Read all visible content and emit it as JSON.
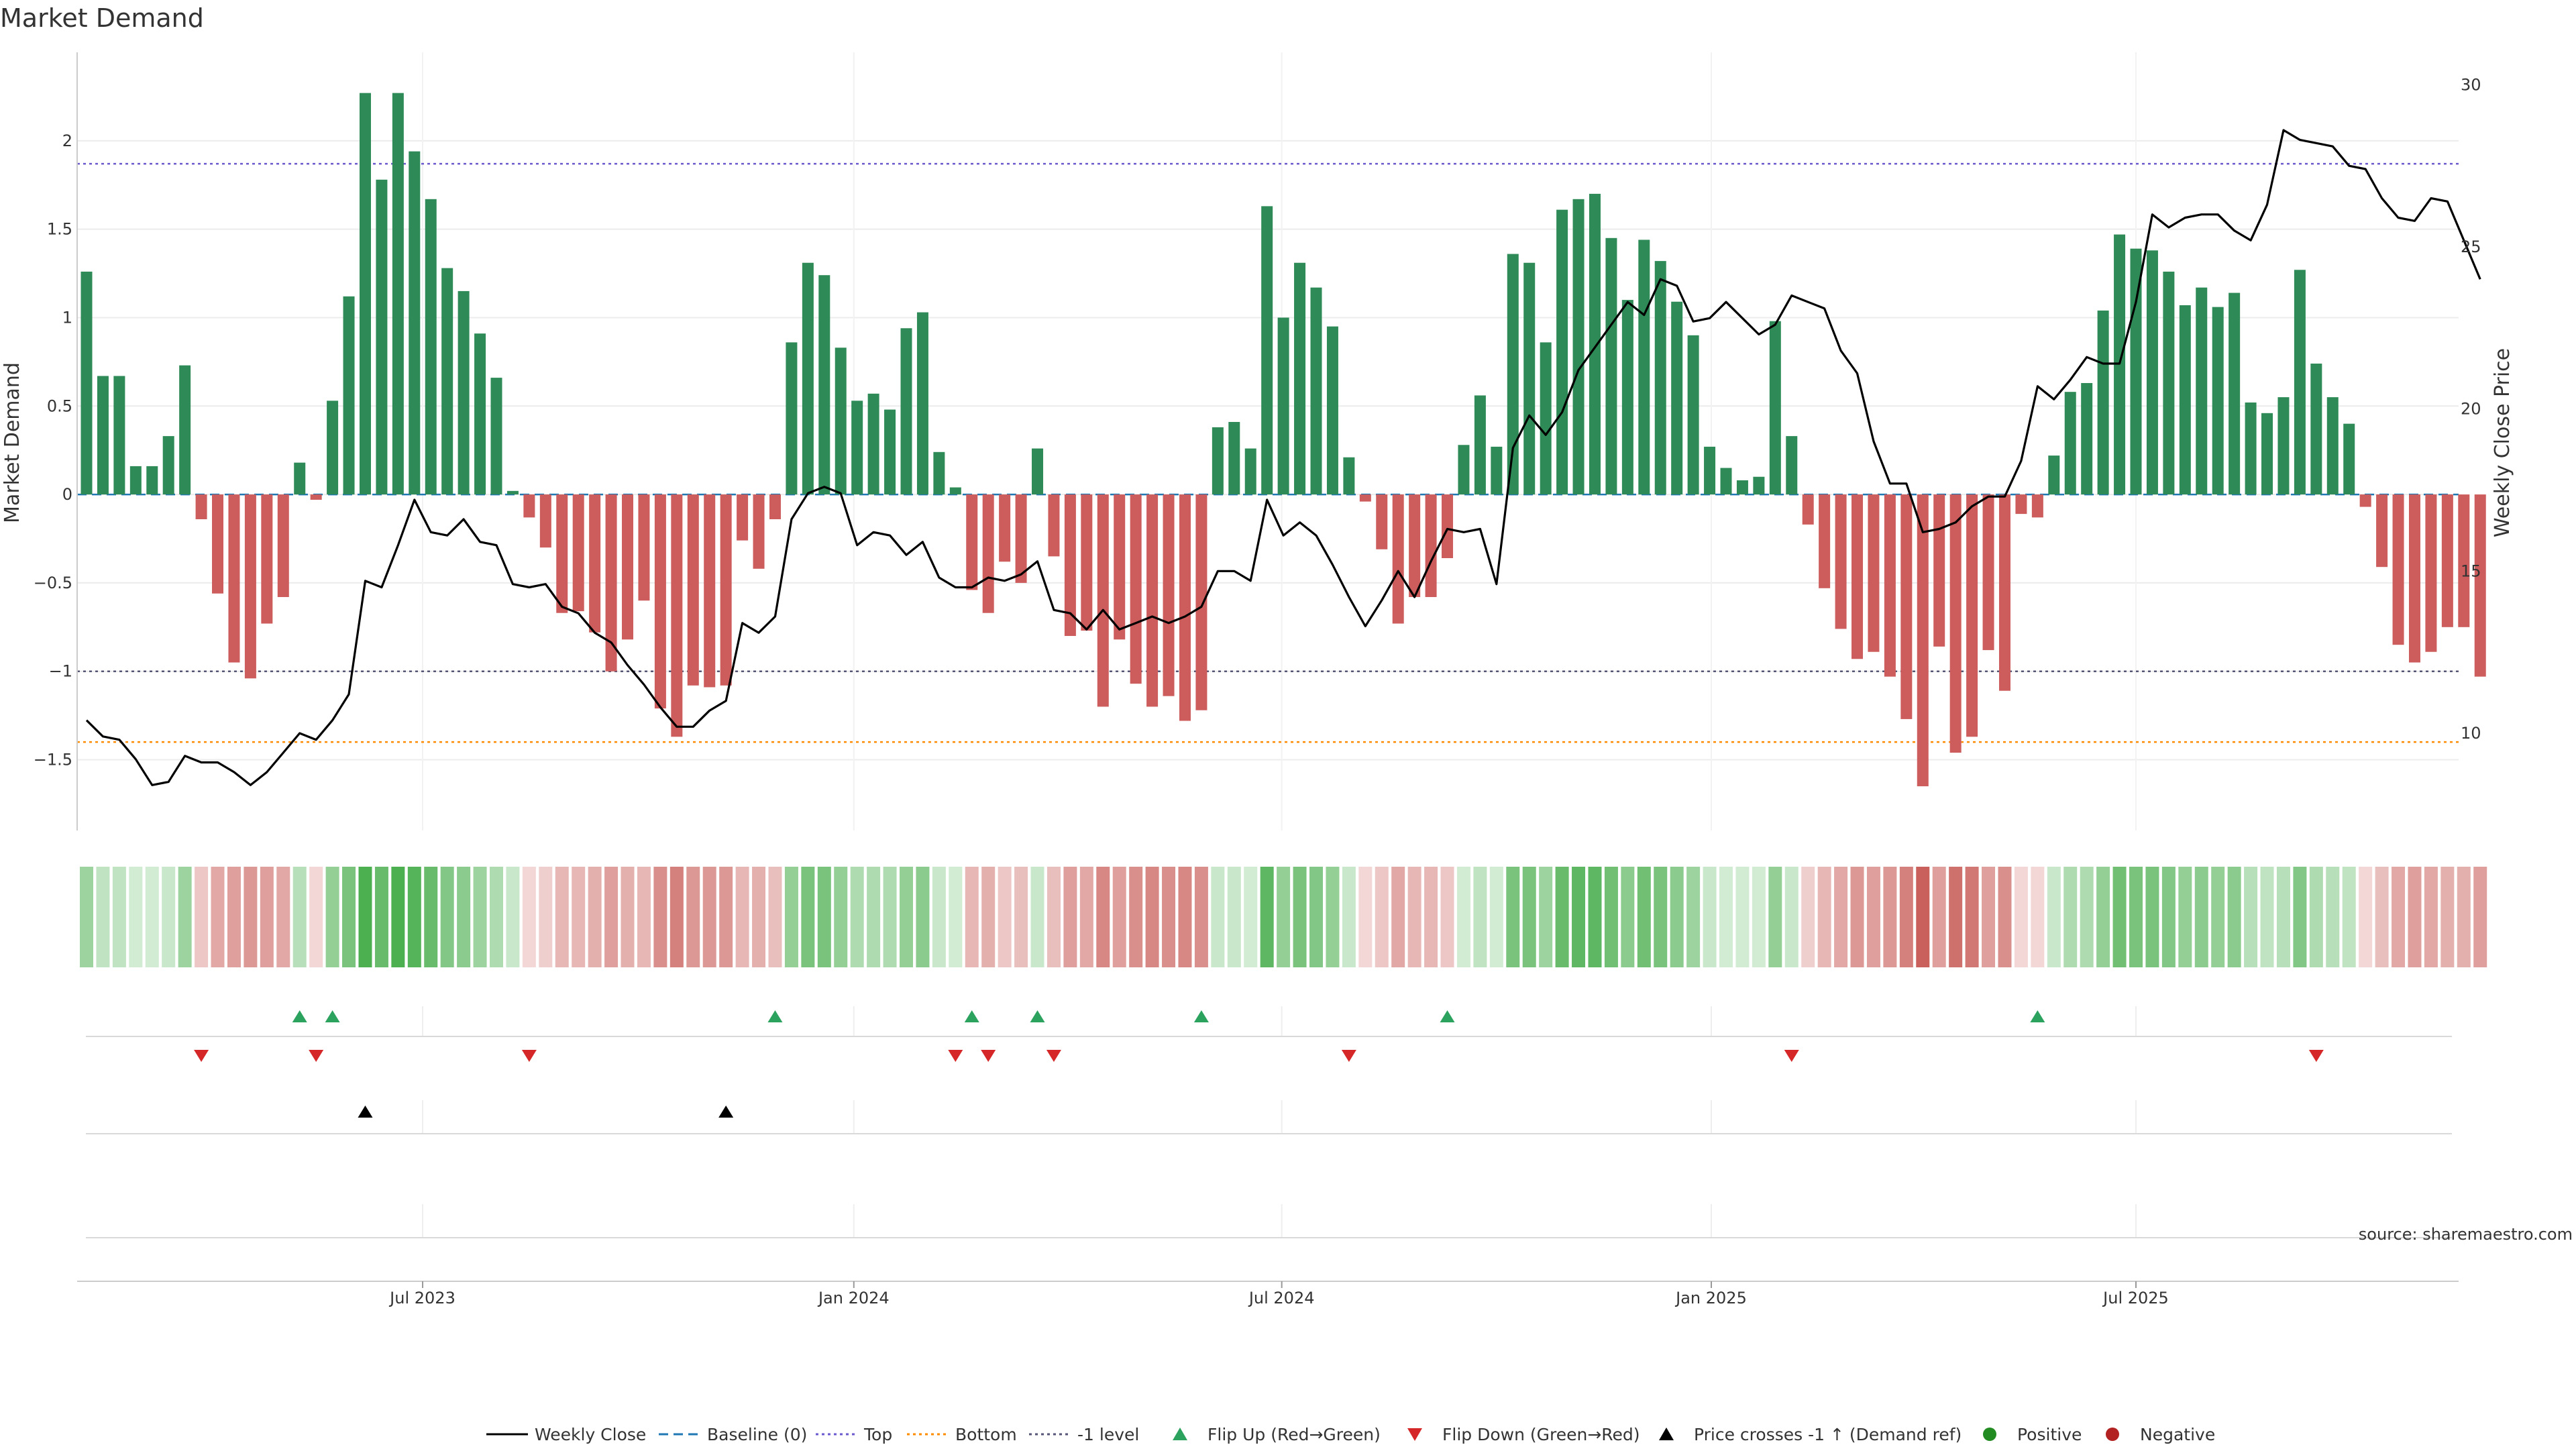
{
  "chart_data": {
    "type": "bar",
    "title": "Market Demand",
    "ylabel": "Market Demand",
    "y2label": "Weekly Close Price",
    "source": "source: sharemaestro.com",
    "ylim": [
      -1.9,
      2.5
    ],
    "y2lim": [
      7.0,
      31.0
    ],
    "yticks": [
      {
        "v": 2,
        "label": "2"
      },
      {
        "v": 1.5,
        "label": "1.5"
      },
      {
        "v": 1,
        "label": "1"
      },
      {
        "v": 0.5,
        "label": "0.5"
      },
      {
        "v": 0,
        "label": "0"
      },
      {
        "v": -0.5,
        "label": "−0.5"
      },
      {
        "v": -1,
        "label": "−1"
      },
      {
        "v": -1.5,
        "label": "−1.5"
      }
    ],
    "y2ticks": [
      {
        "v": 30,
        "label": "30"
      },
      {
        "v": 25,
        "label": "25"
      },
      {
        "v": 20,
        "label": "20"
      },
      {
        "v": 15,
        "label": "15"
      },
      {
        "v": 10,
        "label": "10"
      }
    ],
    "xticks": [
      {
        "week": 20.5,
        "label": "Jul 2023"
      },
      {
        "week": 46.8,
        "label": "Jan 2024"
      },
      {
        "week": 72.9,
        "label": "Jul 2024"
      },
      {
        "week": 99.1,
        "label": "Jan 2025"
      },
      {
        "week": 125.0,
        "label": "Jul 2025"
      }
    ],
    "reference_lines": {
      "top": 1.87,
      "bottom": -1.4,
      "minus_one": -1.0,
      "baseline": 0
    },
    "demand": [
      1.26,
      0.67,
      0.67,
      0.16,
      0.16,
      0.33,
      0.73,
      -0.14,
      -0.56,
      -0.95,
      -1.04,
      -0.73,
      -0.58,
      0.18,
      -0.03,
      0.53,
      1.12,
      2.27,
      1.78,
      2.27,
      1.94,
      1.67,
      1.28,
      1.15,
      0.91,
      0.66,
      0.02,
      -0.13,
      -0.3,
      -0.67,
      -0.66,
      -0.78,
      -1.0,
      -0.82,
      -0.6,
      -1.21,
      -1.37,
      -1.08,
      -1.09,
      -1.08,
      -0.26,
      -0.42,
      -0.14,
      0.86,
      1.31,
      1.24,
      0.83,
      0.53,
      0.57,
      0.48,
      0.94,
      1.03,
      0.24,
      0.04,
      -0.54,
      -0.67,
      -0.38,
      -0.5,
      0.26,
      -0.35,
      -0.8,
      -0.77,
      -1.2,
      -0.82,
      -1.07,
      -1.2,
      -1.14,
      -1.28,
      -1.22,
      0.38,
      0.41,
      0.26,
      1.63,
      1.0,
      1.31,
      1.17,
      0.95,
      0.21,
      -0.04,
      -0.31,
      -0.73,
      -0.58,
      -0.58,
      -0.36,
      0.28,
      0.56,
      0.27,
      1.36,
      1.31,
      0.86,
      1.61,
      1.67,
      1.7,
      1.45,
      1.1,
      1.44,
      1.32,
      1.09,
      0.9,
      0.27,
      0.15,
      0.08,
      0.1,
      0.98,
      0.33,
      -0.17,
      -0.53,
      -0.76,
      -0.93,
      -0.89,
      -1.03,
      -1.27,
      -1.65,
      -0.86,
      -1.46,
      -1.37,
      -0.88,
      -1.11,
      -0.11,
      -0.13,
      0.22,
      0.58,
      0.63,
      1.04,
      1.47,
      1.39,
      1.38,
      1.26,
      1.07,
      1.17,
      1.06,
      1.14,
      0.52,
      0.46,
      0.55,
      1.27,
      0.74,
      0.55,
      0.4,
      -0.07,
      -0.41,
      -0.85,
      -0.95,
      -0.89,
      -0.75,
      -0.75,
      -1.03
    ],
    "weekly_close": [
      10.4,
      9.9,
      9.8,
      9.2,
      8.4,
      8.5,
      9.3,
      9.1,
      9.1,
      8.8,
      8.4,
      8.8,
      9.4,
      10.0,
      9.8,
      10.4,
      11.2,
      14.7,
      14.5,
      15.8,
      17.2,
      16.2,
      16.1,
      16.6,
      15.9,
      15.8,
      14.6,
      14.5,
      14.6,
      13.9,
      13.7,
      13.1,
      12.8,
      12.1,
      11.5,
      10.8,
      10.2,
      10.2,
      10.7,
      11.0,
      13.4,
      13.1,
      13.6,
      16.6,
      17.4,
      17.6,
      17.4,
      15.8,
      16.2,
      16.1,
      15.5,
      15.9,
      14.8,
      14.5,
      14.5,
      14.8,
      14.7,
      14.9,
      15.3,
      13.8,
      13.7,
      13.2,
      13.8,
      13.2,
      13.4,
      13.6,
      13.4,
      13.6,
      13.9,
      15.0,
      15.0,
      14.7,
      17.2,
      16.1,
      16.5,
      16.1,
      15.2,
      14.2,
      13.3,
      14.1,
      15.0,
      14.2,
      15.3,
      16.3,
      16.2,
      16.3,
      14.6,
      18.8,
      19.8,
      19.2,
      19.9,
      21.2,
      21.9,
      22.6,
      23.3,
      22.9,
      24.0,
      23.8,
      22.7,
      22.8,
      23.3,
      22.8,
      22.3,
      22.6,
      23.5,
      23.3,
      23.1,
      21.8,
      21.1,
      19.0,
      17.7,
      17.7,
      16.2,
      16.3,
      16.5,
      17.0,
      17.3,
      17.3,
      18.4,
      20.7,
      20.3,
      20.9,
      21.6,
      21.4,
      21.4,
      23.3,
      26.0,
      25.6,
      25.9,
      26.0,
      26.0,
      25.5,
      25.2,
      26.3,
      28.6,
      28.3,
      28.2,
      28.1,
      27.5,
      27.4,
      26.5,
      25.9,
      25.8,
      26.5,
      26.4,
      25.2,
      24.0
    ],
    "band_intensity": [
      0.55,
      0.35,
      0.35,
      0.25,
      0.25,
      0.3,
      0.55,
      0.35,
      0.55,
      0.6,
      0.65,
      0.6,
      0.55,
      0.4,
      0.25,
      0.6,
      0.75,
      1.0,
      0.85,
      1.0,
      0.95,
      0.85,
      0.7,
      0.65,
      0.55,
      0.45,
      0.3,
      0.25,
      0.3,
      0.45,
      0.45,
      0.5,
      0.6,
      0.5,
      0.45,
      0.7,
      0.8,
      0.65,
      0.65,
      0.65,
      0.45,
      0.5,
      0.4,
      0.6,
      0.75,
      0.75,
      0.6,
      0.45,
      0.45,
      0.45,
      0.6,
      0.65,
      0.3,
      0.25,
      0.45,
      0.5,
      0.35,
      0.4,
      0.3,
      0.4,
      0.6,
      0.55,
      0.75,
      0.6,
      0.7,
      0.75,
      0.7,
      0.75,
      0.7,
      0.3,
      0.3,
      0.25,
      0.9,
      0.6,
      0.75,
      0.7,
      0.6,
      0.3,
      0.25,
      0.35,
      0.55,
      0.45,
      0.45,
      0.35,
      0.25,
      0.35,
      0.25,
      0.75,
      0.75,
      0.55,
      0.85,
      0.9,
      0.9,
      0.8,
      0.65,
      0.8,
      0.75,
      0.65,
      0.55,
      0.3,
      0.25,
      0.25,
      0.25,
      0.6,
      0.3,
      0.3,
      0.45,
      0.55,
      0.65,
      0.6,
      0.65,
      0.8,
      1.0,
      0.6,
      0.9,
      0.85,
      0.6,
      0.7,
      0.25,
      0.25,
      0.3,
      0.45,
      0.45,
      0.6,
      0.8,
      0.75,
      0.75,
      0.7,
      0.6,
      0.65,
      0.6,
      0.65,
      0.4,
      0.35,
      0.4,
      0.7,
      0.45,
      0.4,
      0.35,
      0.25,
      0.4,
      0.55,
      0.6,
      0.55,
      0.5,
      0.5,
      0.6
    ],
    "flip_up_weeks": [
      13,
      15,
      42,
      54,
      58,
      68,
      83,
      119
    ],
    "flip_down_weeks": [
      7,
      14,
      27,
      53,
      55,
      59,
      77,
      104,
      136
    ],
    "price_cross_weeks": [
      17,
      39
    ],
    "legend": [
      {
        "key": "close",
        "label": "Weekly Close"
      },
      {
        "key": "baseline",
        "label": "Baseline (0)"
      },
      {
        "key": "top",
        "label": "Top"
      },
      {
        "key": "bottom",
        "label": "Bottom"
      },
      {
        "key": "minus1",
        "label": "-1 level"
      },
      {
        "key": "flipup",
        "label": "Flip Up (Red→Green)"
      },
      {
        "key": "flipdown",
        "label": "Flip Down (Green→Red)"
      },
      {
        "key": "cross",
        "label": "Price crosses -1 ↑ (Demand ref)"
      },
      {
        "key": "pos",
        "label": "Positive"
      },
      {
        "key": "neg",
        "label": "Negative"
      }
    ],
    "colors": {
      "positive": "#2e8b57",
      "negative": "#cd5c5c",
      "close_line": "#000000",
      "baseline": "#1f77b4",
      "top_line": "#6a5acd",
      "bottom_line": "#ff8c00",
      "minus_one_line": "#555577",
      "flip_up": "#2ca25f",
      "flip_down": "#d62728",
      "cross": "#000000",
      "legend_positive": "#228b22",
      "legend_negative": "#b22222"
    }
  }
}
